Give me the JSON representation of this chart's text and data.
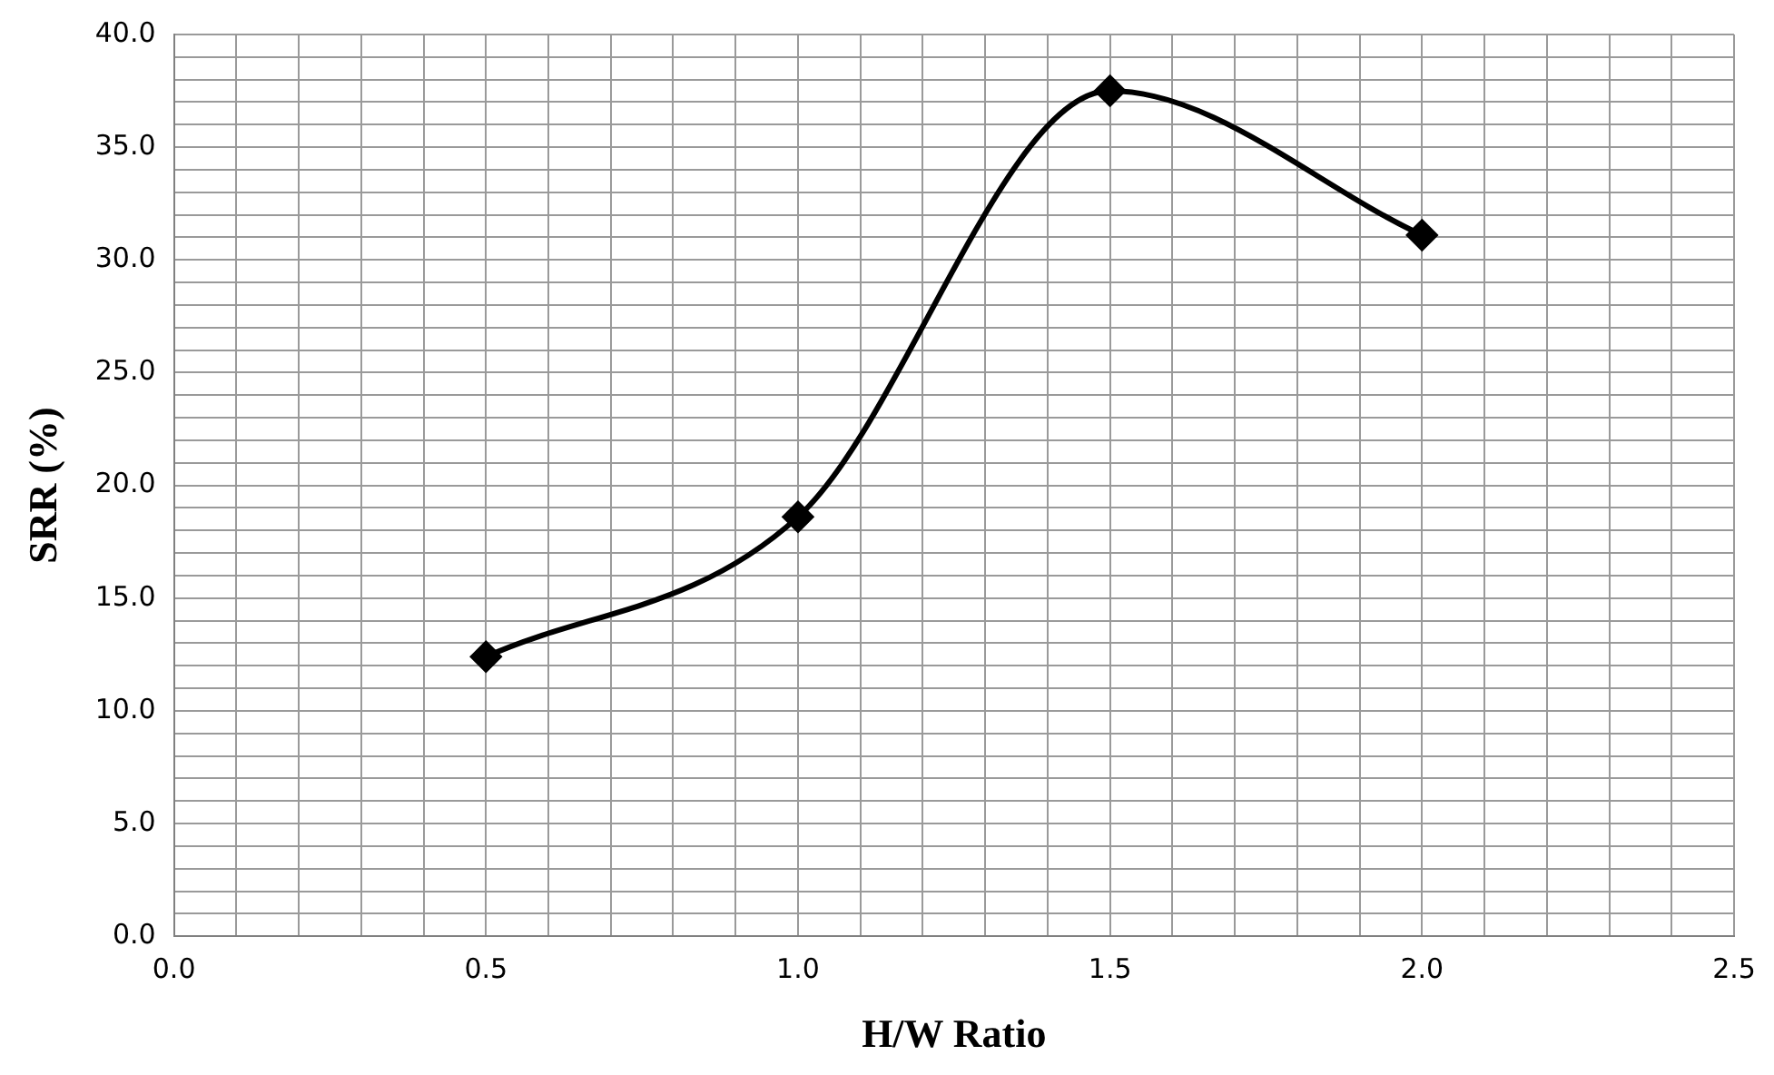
{
  "chart_data": {
    "type": "line",
    "xlabel": "H/W Ratio",
    "ylabel": "SRR (%)",
    "x": [
      0.5,
      1.0,
      1.5,
      2.0
    ],
    "series": [
      {
        "color": "#000000",
        "values": [
          12.4,
          18.6,
          37.5,
          31.1
        ]
      }
    ],
    "xlim": [
      0,
      2.5
    ],
    "xticks": [
      {
        "value": 0,
        "label": "0.0"
      },
      {
        "value": 0.1,
        "label": null
      },
      {
        "value": 0.2,
        "label": null
      },
      {
        "value": 0.3,
        "label": null
      },
      {
        "value": 0.4,
        "label": null
      },
      {
        "value": 0.5,
        "label": "0.5"
      },
      {
        "value": 0.6,
        "label": null
      },
      {
        "value": 0.7,
        "label": null
      },
      {
        "value": 0.8,
        "label": null
      },
      {
        "value": 0.9,
        "label": null
      },
      {
        "value": 1.0,
        "label": "1.0"
      },
      {
        "value": 1.1,
        "label": null
      },
      {
        "value": 1.2,
        "label": null
      },
      {
        "value": 1.3,
        "label": null
      },
      {
        "value": 1.4,
        "label": null
      },
      {
        "value": 1.5,
        "label": "1.5"
      },
      {
        "value": 1.6,
        "label": null
      },
      {
        "value": 1.7,
        "label": null
      },
      {
        "value": 1.8,
        "label": null
      },
      {
        "value": 1.9,
        "label": null
      },
      {
        "value": 2.0,
        "label": "2.0"
      },
      {
        "value": 2.1,
        "label": null
      },
      {
        "value": 2.2,
        "label": null
      },
      {
        "value": 2.3,
        "label": null
      },
      {
        "value": 2.4,
        "label": null
      },
      {
        "value": 2.5,
        "label": "2.5"
      }
    ],
    "ylim": [
      0,
      40
    ],
    "yticks": [
      {
        "value": 0,
        "label": "0.0"
      },
      {
        "value": 1,
        "label": null
      },
      {
        "value": 2,
        "label": null
      },
      {
        "value": 3,
        "label": null
      },
      {
        "value": 4,
        "label": null
      },
      {
        "value": 5,
        "label": "5.0"
      },
      {
        "value": 6,
        "label": null
      },
      {
        "value": 7,
        "label": null
      },
      {
        "value": 8,
        "label": null
      },
      {
        "value": 9,
        "label": null
      },
      {
        "value": 10,
        "label": "10.0"
      },
      {
        "value": 11,
        "label": null
      },
      {
        "value": 12,
        "label": null
      },
      {
        "value": 13,
        "label": null
      },
      {
        "value": 14,
        "label": null
      },
      {
        "value": 15,
        "label": "15.0"
      },
      {
        "value": 16,
        "label": null
      },
      {
        "value": 17,
        "label": null
      },
      {
        "value": 18,
        "label": null
      },
      {
        "value": 19,
        "label": null
      },
      {
        "value": 20,
        "label": "20.0"
      },
      {
        "value": 21,
        "label": null
      },
      {
        "value": 22,
        "label": null
      },
      {
        "value": 23,
        "label": null
      },
      {
        "value": 24,
        "label": null
      },
      {
        "value": 25,
        "label": "25.0"
      },
      {
        "value": 26,
        "label": null
      },
      {
        "value": 27,
        "label": null
      },
      {
        "value": 28,
        "label": null
      },
      {
        "value": 29,
        "label": null
      },
      {
        "value": 30,
        "label": "30.0"
      },
      {
        "value": 31,
        "label": null
      },
      {
        "value": 32,
        "label": null
      },
      {
        "value": 33,
        "label": null
      },
      {
        "value": 34,
        "label": null
      },
      {
        "value": 35,
        "label": "35.0"
      },
      {
        "value": 36,
        "label": null
      },
      {
        "value": 37,
        "label": null
      },
      {
        "value": 38,
        "label": null
      },
      {
        "value": 39,
        "label": null
      },
      {
        "value": 40,
        "label": "40.0"
      }
    ],
    "grid": true,
    "legend": false,
    "marker": "diamond",
    "line_style": "solid"
  }
}
